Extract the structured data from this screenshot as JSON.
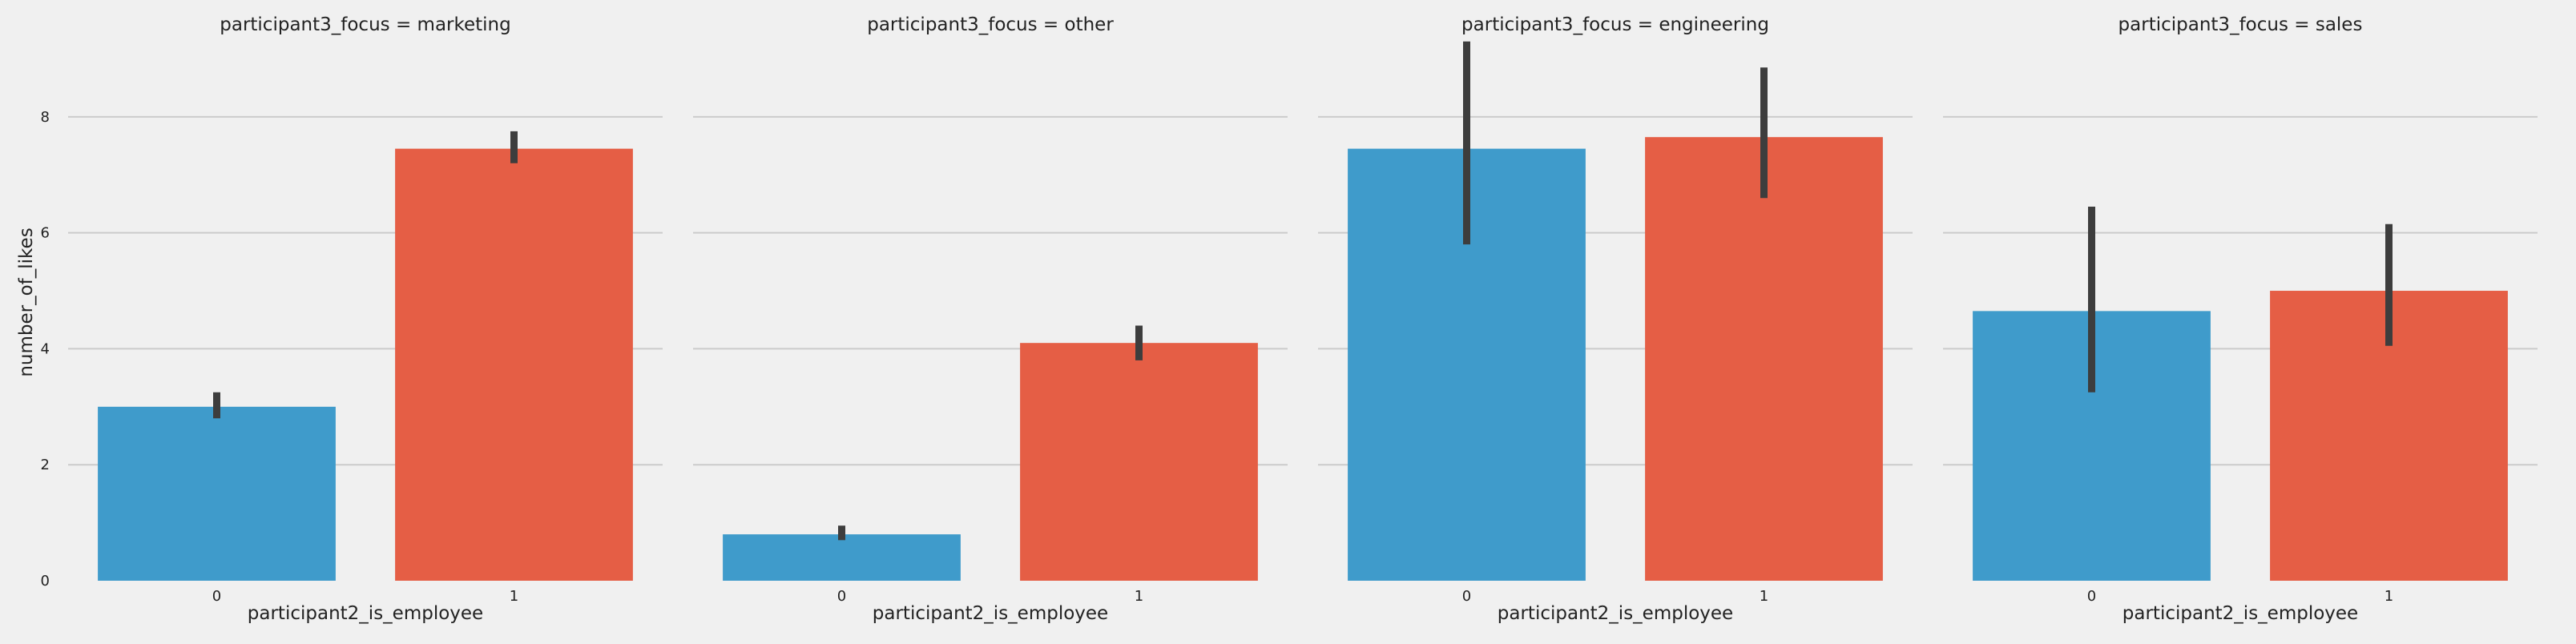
{
  "chart_data": {
    "type": "bar",
    "ylabel": "number_of_likes",
    "xlabel": "participant2_is_employee",
    "ylim": [
      0,
      9.6
    ],
    "yticks": [
      "0",
      "2",
      "4",
      "6",
      "8"
    ],
    "categories": [
      "0",
      "1"
    ],
    "grid": true,
    "colors": {
      "0": "#3f9bcb",
      "1": "#e55e45",
      "errorbar": "#3d3d3d",
      "grid": "#cbcbcb",
      "background": "#f0f0f0"
    },
    "panels": [
      {
        "title": "participant3_focus = marketing",
        "values": [
          3.0,
          7.45
        ],
        "ci": [
          [
            2.8,
            3.25
          ],
          [
            7.2,
            7.75
          ]
        ]
      },
      {
        "title": "participant3_focus = other",
        "values": [
          0.8,
          4.1
        ],
        "ci": [
          [
            0.7,
            0.95
          ],
          [
            3.8,
            4.4
          ]
        ]
      },
      {
        "title": "participant3_focus = engineering",
        "values": [
          7.45,
          7.65
        ],
        "ci": [
          [
            5.8,
            9.3
          ],
          [
            6.6,
            8.85
          ]
        ]
      },
      {
        "title": "participant3_focus = sales",
        "values": [
          4.65,
          5.0
        ],
        "ci": [
          [
            3.25,
            6.45
          ],
          [
            4.05,
            6.15
          ]
        ]
      }
    ]
  }
}
